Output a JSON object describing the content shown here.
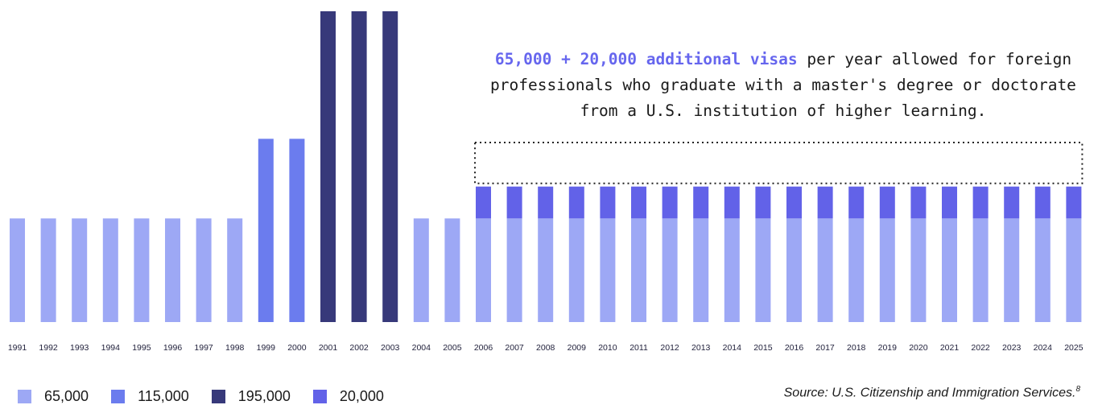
{
  "chart_data": {
    "type": "bar",
    "categories": [
      "1991",
      "1992",
      "1993",
      "1994",
      "1995",
      "1996",
      "1997",
      "1998",
      "1999",
      "2000",
      "2001",
      "2002",
      "2003",
      "2004",
      "2005",
      "2006",
      "2007",
      "2008",
      "2009",
      "2010",
      "2011",
      "2012",
      "2013",
      "2014",
      "2015",
      "2016",
      "2017",
      "2018",
      "2019",
      "2020",
      "2021",
      "2022",
      "2023",
      "2024",
      "2025"
    ],
    "series": [
      {
        "name": "65,000",
        "color": "#9da8f5",
        "values": [
          65000,
          65000,
          65000,
          65000,
          65000,
          65000,
          65000,
          65000,
          null,
          null,
          null,
          null,
          null,
          65000,
          65000,
          65000,
          65000,
          65000,
          65000,
          65000,
          65000,
          65000,
          65000,
          65000,
          65000,
          65000,
          65000,
          65000,
          65000,
          65000,
          65000,
          65000,
          65000,
          65000,
          65000
        ]
      },
      {
        "name": "115,000",
        "color": "#6b7cee",
        "values": [
          null,
          null,
          null,
          null,
          null,
          null,
          null,
          null,
          115000,
          115000,
          null,
          null,
          null,
          null,
          null,
          null,
          null,
          null,
          null,
          null,
          null,
          null,
          null,
          null,
          null,
          null,
          null,
          null,
          null,
          null,
          null,
          null,
          null,
          null,
          null
        ]
      },
      {
        "name": "195,000",
        "color": "#37397a",
        "values": [
          null,
          null,
          null,
          null,
          null,
          null,
          null,
          null,
          null,
          null,
          195000,
          195000,
          195000,
          null,
          null,
          null,
          null,
          null,
          null,
          null,
          null,
          null,
          null,
          null,
          null,
          null,
          null,
          null,
          null,
          null,
          null,
          null,
          null,
          null,
          null
        ]
      },
      {
        "name": "20,000",
        "color": "#6262e8",
        "values": [
          null,
          null,
          null,
          null,
          null,
          null,
          null,
          null,
          null,
          null,
          null,
          null,
          null,
          null,
          null,
          20000,
          20000,
          20000,
          20000,
          20000,
          20000,
          20000,
          20000,
          20000,
          20000,
          20000,
          20000,
          20000,
          20000,
          20000,
          20000,
          20000,
          20000,
          20000,
          20000
        ]
      }
    ],
    "stacked": true,
    "ylim": [
      0,
      195000
    ],
    "grid": false,
    "legend_position": "bottom-left",
    "annotation": {
      "highlight": "65,000 + 20,000 additional visas",
      "text": " per year allowed for foreign professionals who graduate with a master's degree or doctorate from a U.S. institution of higher learning."
    },
    "source": "Source: U.S. Citizenship and Immigration Services.",
    "source_note": "8"
  }
}
